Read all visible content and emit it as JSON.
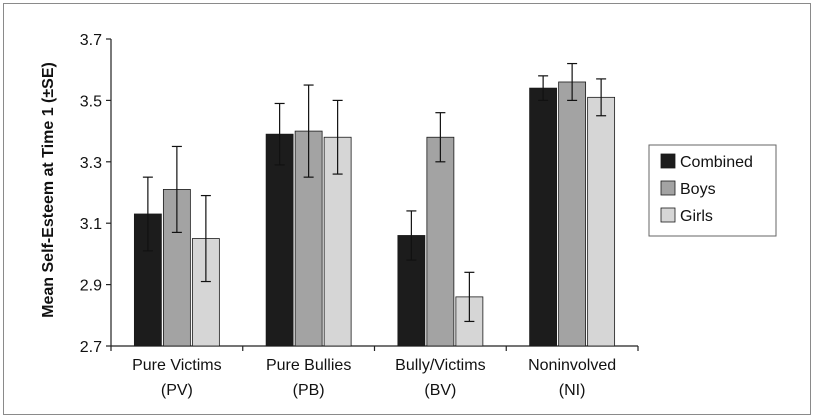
{
  "chart_data": {
    "type": "bar",
    "ylabel": "Mean Self-Esteem at Time 1 (±SE)",
    "ylim": [
      2.7,
      3.7
    ],
    "yticks": [
      "3.7",
      "3.5",
      "3.3",
      "3.1",
      "2.9",
      "2.7"
    ],
    "ytick_values": [
      3.7,
      3.5,
      3.3,
      3.1,
      2.9,
      2.7
    ],
    "categories": [
      {
        "line1": "Pure Victims",
        "line2": "(PV)"
      },
      {
        "line1": "Pure Bullies",
        "line2": "(PB)"
      },
      {
        "line1": "Bully/Victims",
        "line2": "(BV)"
      },
      {
        "line1": "Noninvolved",
        "line2": "(NI)"
      }
    ],
    "series": [
      {
        "name": "Combined",
        "color": "#1c1c1c",
        "values": [
          3.13,
          3.39,
          3.06,
          3.54
        ],
        "errors": [
          0.12,
          0.1,
          0.08,
          0.04
        ]
      },
      {
        "name": "Boys",
        "color": "#a3a3a3",
        "values": [
          3.21,
          3.4,
          3.38,
          3.56
        ],
        "errors": [
          0.14,
          0.15,
          0.08,
          0.06
        ]
      },
      {
        "name": "Girls",
        "color": "#d6d6d6",
        "values": [
          3.05,
          3.38,
          2.86,
          3.51
        ],
        "errors": [
          0.14,
          0.12,
          0.08,
          0.06
        ]
      }
    ],
    "legend_position": "right",
    "grid": false
  }
}
